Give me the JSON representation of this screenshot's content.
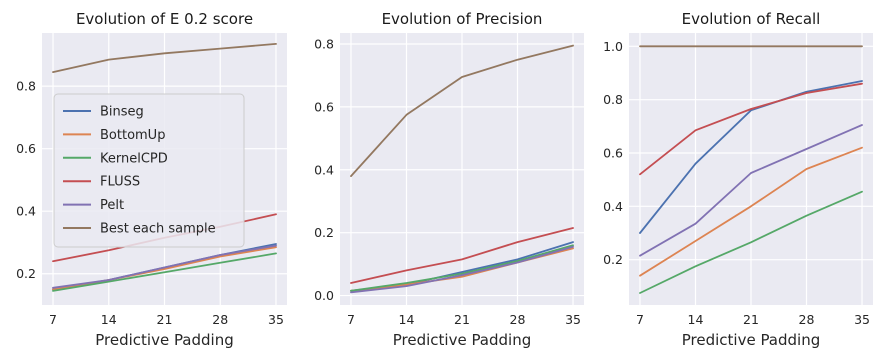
{
  "colors": {
    "Binseg": "#4c72b0",
    "BottomUp": "#dd8452",
    "KernelCPD": "#55a868",
    "FLUSS": "#c44e52",
    "Pelt": "#8172b3",
    "Best each sample": "#937860",
    "panel_bg": "#eaeaf2",
    "grid": "#ffffff"
  },
  "legend": {
    "placement": "center-left of first panel",
    "entries": [
      "Binseg",
      "BottomUp",
      "KernelCPD",
      "FLUSS",
      "Pelt",
      "Best each sample"
    ]
  },
  "chart_data": [
    {
      "type": "line",
      "title": "Evolution of E 0.2 score",
      "xlabel": "Predictive Padding",
      "ylabel": "",
      "x": [
        7,
        14,
        21,
        28,
        35
      ],
      "ylim": [
        0.1,
        0.97
      ],
      "yticks": [
        0.2,
        0.4,
        0.6,
        0.8
      ],
      "ytick_labels": [
        "0.2",
        "0.4",
        "0.6",
        "0.8"
      ],
      "grid": true,
      "series": [
        {
          "name": "Binseg",
          "values": [
            0.15,
            0.18,
            0.22,
            0.26,
            0.295
          ]
        },
        {
          "name": "BottomUp",
          "values": [
            0.15,
            0.18,
            0.215,
            0.255,
            0.285
          ]
        },
        {
          "name": "KernelCPD",
          "values": [
            0.145,
            0.175,
            0.205,
            0.235,
            0.265
          ]
        },
        {
          "name": "FLUSS",
          "values": [
            0.24,
            0.275,
            0.315,
            0.35,
            0.39
          ]
        },
        {
          "name": "Pelt",
          "values": [
            0.155,
            0.18,
            0.22,
            0.26,
            0.29
          ]
        },
        {
          "name": "Best each sample",
          "values": [
            0.845,
            0.885,
            0.905,
            0.92,
            0.935
          ]
        }
      ]
    },
    {
      "type": "line",
      "title": "Evolution of Precision",
      "xlabel": "Predictive Padding",
      "ylabel": "",
      "x": [
        7,
        14,
        21,
        28,
        35
      ],
      "ylim": [
        -0.03,
        0.835
      ],
      "yticks": [
        0.0,
        0.2,
        0.4,
        0.6,
        0.8
      ],
      "ytick_labels": [
        "0.0",
        "0.2",
        "0.4",
        "0.6",
        "0.8"
      ],
      "grid": true,
      "series": [
        {
          "name": "Binseg",
          "values": [
            0.015,
            0.035,
            0.075,
            0.115,
            0.17
          ]
        },
        {
          "name": "BottomUp",
          "values": [
            0.015,
            0.035,
            0.06,
            0.105,
            0.15
          ]
        },
        {
          "name": "KernelCPD",
          "values": [
            0.015,
            0.04,
            0.07,
            0.11,
            0.16
          ]
        },
        {
          "name": "FLUSS",
          "values": [
            0.04,
            0.08,
            0.115,
            0.17,
            0.215
          ]
        },
        {
          "name": "Pelt",
          "values": [
            0.01,
            0.03,
            0.065,
            0.105,
            0.155
          ]
        },
        {
          "name": "Best each sample",
          "values": [
            0.38,
            0.575,
            0.695,
            0.75,
            0.795
          ]
        }
      ]
    },
    {
      "type": "line",
      "title": "Evolution of Recall",
      "xlabel": "Predictive Padding",
      "ylabel": "",
      "x": [
        7,
        14,
        21,
        28,
        35
      ],
      "ylim": [
        0.03,
        1.05
      ],
      "yticks": [
        0.2,
        0.4,
        0.6,
        0.8,
        1.0
      ],
      "ytick_labels": [
        "0.2",
        "0.4",
        "0.6",
        "0.8",
        "1.0"
      ],
      "grid": true,
      "series": [
        {
          "name": "Binseg",
          "values": [
            0.3,
            0.56,
            0.76,
            0.83,
            0.87
          ]
        },
        {
          "name": "BottomUp",
          "values": [
            0.14,
            0.27,
            0.4,
            0.54,
            0.62
          ]
        },
        {
          "name": "KernelCPD",
          "values": [
            0.075,
            0.175,
            0.265,
            0.365,
            0.455
          ]
        },
        {
          "name": "FLUSS",
          "values": [
            0.52,
            0.685,
            0.765,
            0.825,
            0.86
          ]
        },
        {
          "name": "Pelt",
          "values": [
            0.215,
            0.335,
            0.525,
            0.615,
            0.705
          ]
        },
        {
          "name": "Best each sample",
          "values": [
            1.0,
            1.0,
            1.0,
            1.0,
            1.0
          ]
        }
      ]
    }
  ]
}
